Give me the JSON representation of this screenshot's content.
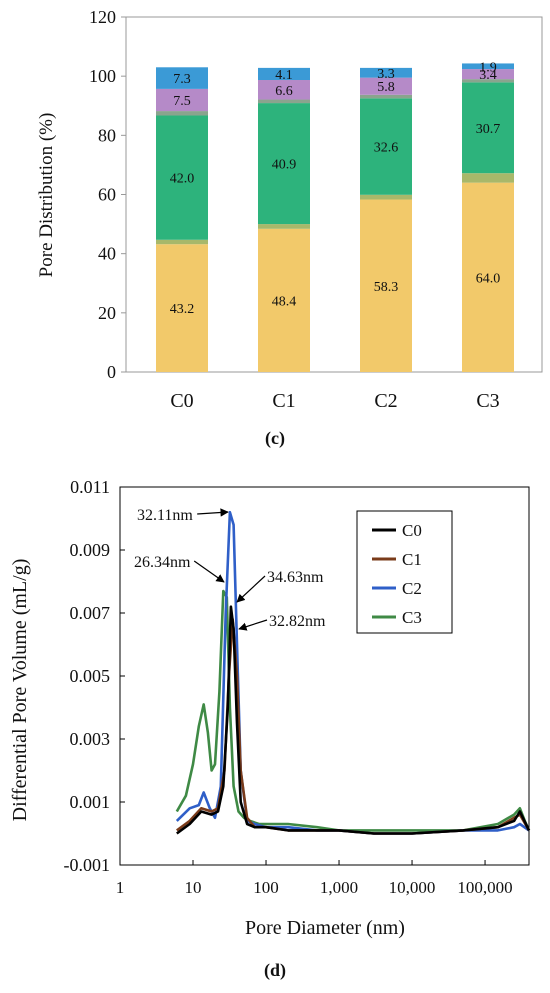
{
  "panel_c_label": "(c)",
  "panel_d_label": "(d)",
  "chart_data": [
    {
      "type": "bar",
      "stacked": true,
      "ylabel": "Pore Distribution (%)",
      "ylim": [
        0,
        120
      ],
      "yticks": [
        0,
        20,
        40,
        60,
        80,
        100,
        120
      ],
      "categories": [
        "C0",
        "C1",
        "C2",
        "C3"
      ],
      "series": [
        {
          "color": "#f2c96a",
          "values": [
            43.2,
            48.4,
            58.3,
            64.0
          ],
          "labels": [
            "43.2",
            "48.4",
            "58.3",
            "64.0"
          ]
        },
        {
          "color": "#a8b86a",
          "values": [
            1.5,
            1.6,
            1.6,
            3.2
          ],
          "labels": [
            "",
            "",
            "",
            ""
          ]
        },
        {
          "color": "#2db37c",
          "values": [
            42.0,
            40.9,
            32.6,
            30.7
          ],
          "labels": [
            "42.0",
            "40.9",
            "32.6",
            "30.7"
          ]
        },
        {
          "color": "#8aa48e",
          "values": [
            1.5,
            1.2,
            1.2,
            1.1
          ],
          "labels": [
            "",
            "",
            "",
            ""
          ]
        },
        {
          "color": "#b58ac8",
          "values": [
            7.5,
            6.6,
            5.8,
            3.4
          ],
          "labels": [
            "7.5",
            "6.6",
            "5.8",
            "3.4"
          ]
        },
        {
          "color": "#3b9ad6",
          "values": [
            7.3,
            4.1,
            3.3,
            1.9
          ],
          "labels": [
            "7.3",
            "4.1",
            "3.3",
            "1.9"
          ]
        }
      ]
    },
    {
      "type": "line",
      "xscale": "log",
      "xlabel": "Pore Diameter (nm)",
      "ylabel": "Differential Pore Volume (mL/g)",
      "xticks": [
        1,
        10,
        100,
        1000,
        10000,
        100000
      ],
      "xticklabels": [
        "1",
        "10",
        "100",
        "1,000",
        "10,000",
        "100,000"
      ],
      "xlim": [
        1,
        400000
      ],
      "ylim": [
        -0.001,
        0.011
      ],
      "yticks": [
        -0.001,
        0.001,
        0.003,
        0.005,
        0.007,
        0.009,
        0.011
      ],
      "yticklabels": [
        "-0.001",
        "0.001",
        "0.003",
        "0.005",
        "0.007",
        "0.009",
        "0.011"
      ],
      "legend_position": "top-right",
      "series": [
        {
          "name": "C0",
          "color": "#000000",
          "x": [
            6,
            9,
            13,
            18,
            22,
            26,
            30,
            33,
            36,
            40,
            45,
            55,
            70,
            100,
            200,
            500,
            1000,
            3000,
            10000,
            50000,
            150000,
            250000,
            300000,
            400000
          ],
          "y": [
            0.0,
            0.0003,
            0.0007,
            0.0006,
            0.0007,
            0.0015,
            0.004,
            0.0072,
            0.0065,
            0.0035,
            0.001,
            0.0003,
            0.0002,
            0.0002,
            0.0001,
            0.0001,
            0.0001,
            0.0,
            0.0,
            0.0001,
            0.0002,
            0.0004,
            0.0007,
            0.0001
          ]
        },
        {
          "name": "C1",
          "color": "#7a3b1a",
          "x": [
            6,
            9,
            13,
            18,
            22,
            27,
            31,
            35,
            40,
            45,
            55,
            70,
            100,
            200,
            500,
            1000,
            3000,
            10000,
            50000,
            150000,
            250000,
            300000,
            400000
          ],
          "y": [
            0.0001,
            0.0004,
            0.0008,
            0.0007,
            0.0008,
            0.002,
            0.005,
            0.0068,
            0.005,
            0.002,
            0.0005,
            0.0002,
            0.0002,
            0.0001,
            0.0001,
            0.0001,
            0.0,
            0.0,
            0.0001,
            0.0002,
            0.0005,
            0.0006,
            0.0001
          ]
        },
        {
          "name": "C2",
          "color": "#2f5fc8",
          "x": [
            6,
            9,
            12,
            14,
            17,
            20,
            24,
            28,
            32,
            36,
            40,
            45,
            55,
            70,
            100,
            200,
            500,
            1000,
            3000,
            10000,
            50000,
            150000,
            250000,
            300000,
            400000
          ],
          "y": [
            0.0004,
            0.0008,
            0.0009,
            0.0013,
            0.0008,
            0.0005,
            0.0015,
            0.007,
            0.0102,
            0.0098,
            0.006,
            0.002,
            0.0004,
            0.0003,
            0.0002,
            0.0002,
            0.0001,
            0.0001,
            0.0,
            0.0,
            0.0001,
            0.0001,
            0.0002,
            0.0003,
            0.0001
          ]
        },
        {
          "name": "C3",
          "color": "#3f8a45",
          "x": [
            6,
            8,
            10,
            12,
            14,
            16,
            18,
            20,
            23,
            26,
            29,
            32,
            36,
            42,
            50,
            60,
            80,
            100,
            200,
            500,
            1000,
            3000,
            10000,
            50000,
            150000,
            250000,
            300000,
            350000,
            400000
          ],
          "y": [
            0.0007,
            0.0012,
            0.0022,
            0.0034,
            0.0041,
            0.0032,
            0.002,
            0.0022,
            0.0045,
            0.0077,
            0.0075,
            0.004,
            0.0015,
            0.0007,
            0.0005,
            0.0004,
            0.0003,
            0.0003,
            0.0003,
            0.0002,
            0.0001,
            0.0001,
            0.0001,
            0.0001,
            0.0003,
            0.0006,
            0.0008,
            0.0004,
            0.0001
          ]
        }
      ],
      "annotations": [
        {
          "text": "32.11nm",
          "x": 32,
          "y": 0.0102
        },
        {
          "text": "26.34nm",
          "x": 26.34,
          "y": 0.0078
        },
        {
          "text": "34.63nm",
          "x": 34.63,
          "y": 0.0069
        },
        {
          "text": "32.82nm",
          "x": 32.82,
          "y": 0.006
        }
      ]
    }
  ]
}
